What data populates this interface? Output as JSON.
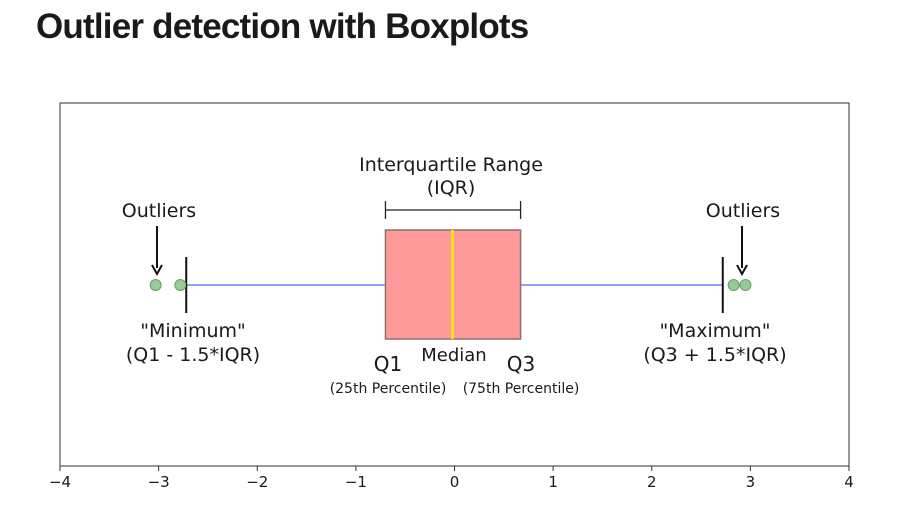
{
  "title": "Outlier detection with Boxplots",
  "chart_data": {
    "type": "boxplot",
    "orientation": "horizontal",
    "xlim": [
      -4,
      4
    ],
    "x_ticks": [
      -4,
      -3,
      -2,
      -1,
      0,
      1,
      2,
      3,
      4
    ],
    "x_tick_labels": [
      "−4",
      "−3",
      "−2",
      "−1",
      "0",
      "1",
      "2",
      "3",
      "4"
    ],
    "box": {
      "q1": -0.7,
      "median": -0.02,
      "q3": 0.67,
      "whisker_low": -2.72,
      "whisker_high": 2.72
    },
    "outliers": [
      -3.03,
      -2.78,
      2.83,
      2.95
    ],
    "colors": {
      "box_fill": "#ff9a9a",
      "box_edge": "#8a7070",
      "median": "#ffee00",
      "whisker": "#9b9bff",
      "outlier_fill": "#98c998",
      "outlier_edge": "#6b9f6b",
      "text": "#1a1a1a"
    },
    "annotations": {
      "iqr_title": "Interquartile Range",
      "iqr_abbr": "(IQR)",
      "outliers_left": "Outliers",
      "outliers_right": "Outliers",
      "minimum_title": "\"Minimum\"",
      "minimum_formula": "(Q1 - 1.5*IQR)",
      "maximum_title": "\"Maximum\"",
      "maximum_formula": "(Q3 + 1.5*IQR)",
      "q1_label": "Q1",
      "q1_sub": "(25th Percentile)",
      "median_label": "Median",
      "q3_label": "Q3",
      "q3_sub": "(75th Percentile)"
    }
  }
}
